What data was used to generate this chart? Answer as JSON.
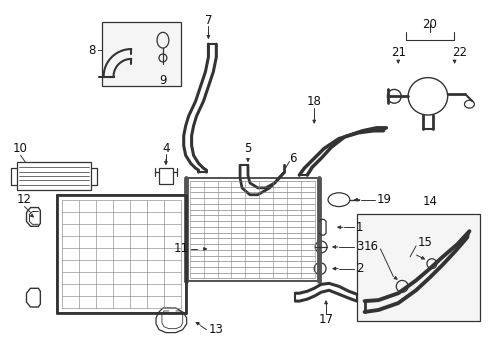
{
  "background_color": "#ffffff",
  "fig_width": 4.9,
  "fig_height": 3.6,
  "dpi": 100,
  "line_color": "#333333",
  "text_color": "#111111",
  "font_size": 7.5,
  "label_font_size": 8.5
}
